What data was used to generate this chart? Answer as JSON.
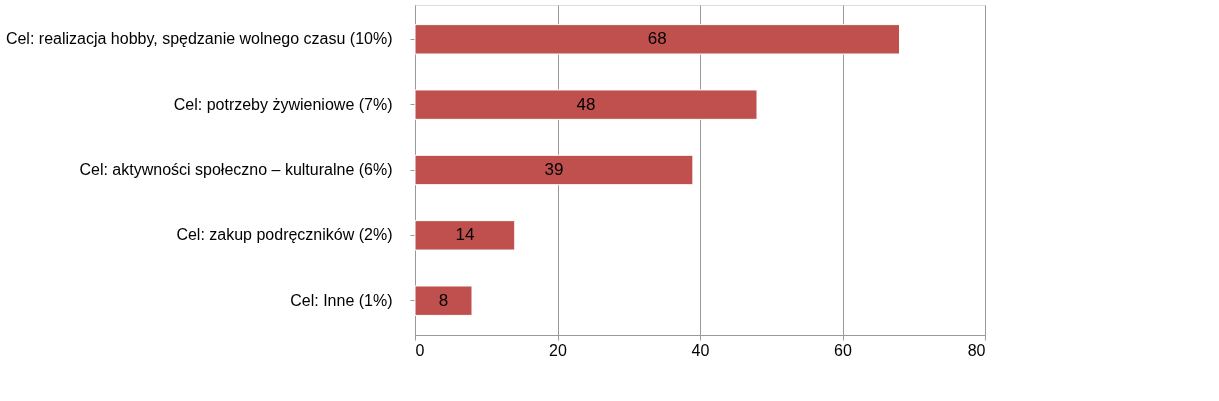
{
  "chart_data": {
    "type": "bar",
    "orientation": "horizontal",
    "categories": [
      "Cel: realizacja hobby, spędzanie wolnego czasu (10%)",
      "Cel: potrzeby żywieniowe (7%)",
      "Cel: aktywności społeczno – kulturalne (6%)",
      "Cel: zakup podręczników (2%)",
      "Cel: Inne (1%)"
    ],
    "values": [
      68,
      48,
      39,
      14,
      8
    ],
    "color": "#c0504d",
    "xlim": [
      0,
      80
    ],
    "xticks": [
      0,
      20,
      40,
      60,
      80
    ],
    "grid": "x",
    "data_labels": true
  }
}
